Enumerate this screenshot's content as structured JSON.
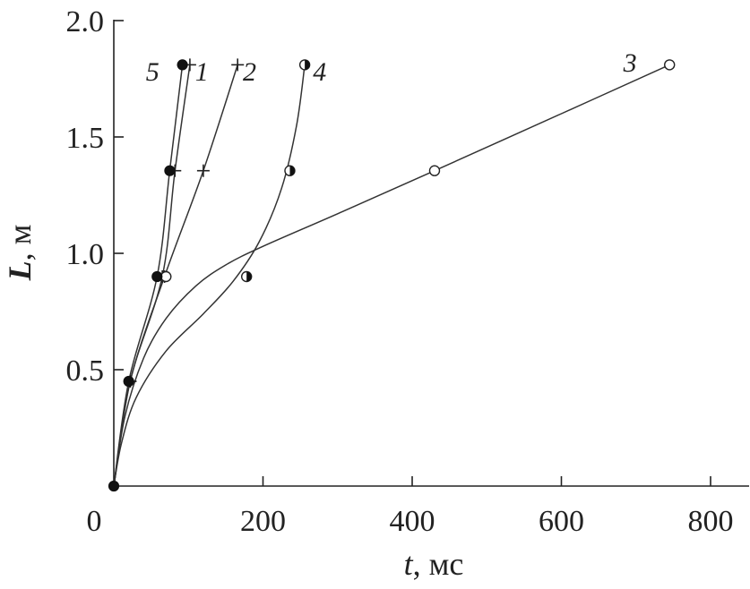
{
  "chart_data": {
    "type": "line",
    "xlabel": {
      "var": "t",
      "unit": ", мс"
    },
    "ylabel": {
      "var": "L",
      "unit": ", м"
    },
    "xlim": [
      0,
      850
    ],
    "ylim": [
      0,
      2.0
    ],
    "xticks": [
      0,
      200,
      400,
      600,
      800
    ],
    "xtick_labels": [
      "0",
      "200",
      "400",
      "600",
      "800"
    ],
    "yticks": [
      0.5,
      1.0,
      1.5,
      2.0
    ],
    "ytick_labels": [
      "0.5",
      "1.0",
      "1.5",
      "2.0"
    ],
    "grid": false,
    "series": [
      {
        "name": "1",
        "marker": "plus",
        "points": [
          [
            22,
            0.45
          ],
          [
            65,
            0.9
          ],
          [
            82,
            1.355
          ],
          [
            102,
            1.81
          ]
        ],
        "curve": [
          [
            0,
            0
          ],
          [
            22,
            0.45
          ],
          [
            65,
            0.9
          ],
          [
            82,
            1.355
          ],
          [
            102,
            1.81
          ]
        ]
      },
      {
        "name": "2",
        "marker": "plus",
        "points": [
          [
            22,
            0.45
          ],
          [
            68,
            0.9
          ],
          [
            120,
            1.355
          ],
          [
            166,
            1.81
          ]
        ],
        "curve": [
          [
            0,
            0
          ],
          [
            22,
            0.45
          ],
          [
            68,
            0.9
          ],
          [
            120,
            1.355
          ],
          [
            166,
            1.81
          ]
        ]
      },
      {
        "name": "3",
        "marker": "circle-open",
        "points": [
          [
            70,
            0.9
          ],
          [
            430,
            1.355
          ],
          [
            745,
            1.81
          ]
        ],
        "curve": [
          [
            0,
            0
          ],
          [
            15,
            0.3
          ],
          [
            40,
            0.55
          ],
          [
            70,
            0.72
          ],
          [
            110,
            0.86
          ],
          [
            150,
            0.95
          ],
          [
            200,
            1.03
          ],
          [
            300,
            1.17
          ],
          [
            430,
            1.355
          ],
          [
            600,
            1.6
          ],
          [
            745,
            1.81
          ]
        ]
      },
      {
        "name": "4",
        "marker": "circle-half",
        "points": [
          [
            178,
            0.9
          ],
          [
            236,
            1.355
          ],
          [
            256,
            1.81
          ]
        ],
        "curve": [
          [
            0,
            0
          ],
          [
            10,
            0.18
          ],
          [
            30,
            0.38
          ],
          [
            70,
            0.58
          ],
          [
            120,
            0.74
          ],
          [
            160,
            0.88
          ],
          [
            195,
            1.05
          ],
          [
            225,
            1.28
          ],
          [
            245,
            1.55
          ],
          [
            256,
            1.81
          ]
        ]
      },
      {
        "name": "5",
        "marker": "circle-filled",
        "points": [
          [
            20,
            0.45
          ],
          [
            58,
            0.9
          ],
          [
            75,
            1.355
          ],
          [
            92,
            1.81
          ]
        ],
        "curve": [
          [
            0,
            0
          ],
          [
            20,
            0.45
          ],
          [
            58,
            0.9
          ],
          [
            75,
            1.355
          ],
          [
            92,
            1.81
          ]
        ]
      }
    ],
    "origin_point": [
      0,
      0
    ],
    "series_labels": [
      {
        "text": "5",
        "x": 52,
        "y": 1.78
      },
      {
        "text": "1",
        "x": 118,
        "y": 1.78
      },
      {
        "text": "2",
        "x": 182,
        "y": 1.78
      },
      {
        "text": "4",
        "x": 276,
        "y": 1.78
      },
      {
        "text": "3",
        "x": 692,
        "y": 1.82
      }
    ]
  }
}
